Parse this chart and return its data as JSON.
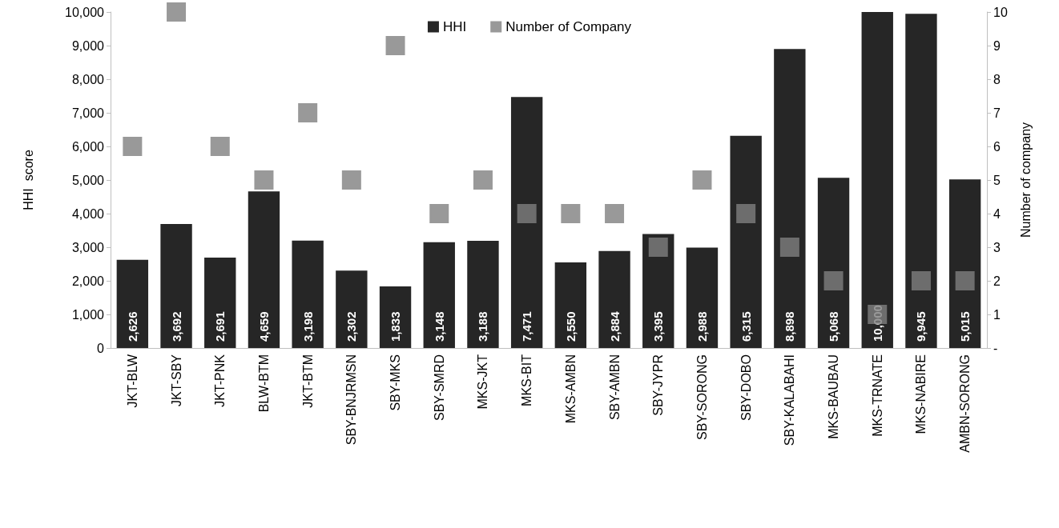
{
  "chart_data": {
    "type": "bar",
    "ylabel": "HHI  score",
    "y2label": "Number of company",
    "categories": [
      "JKT-BLW",
      "JKT-SBY",
      "JKT-PNK",
      "BLW-BTM",
      "JKT-BTM",
      "SBY-BNJRMSN",
      "SBY-MKS",
      "SBY-SMRD",
      "MKS-JKT",
      "MKS-BIT",
      "MKS-AMBN",
      "SBY-AMBN",
      "SBY-JYPR",
      "SBY-SORONG",
      "SBY-DOBO",
      "SBY-KALABAHI",
      "MKS-BAUBAU",
      "MKS-TRNATE",
      "MKS-NABIRE",
      "AMBN-SORONG"
    ],
    "series": [
      {
        "name": "HHI",
        "color": "#262626",
        "values": [
          2626,
          3692,
          2691,
          4659,
          3198,
          2302,
          1833,
          3148,
          3188,
          7471,
          2550,
          2884,
          3395,
          2988,
          6315,
          8898,
          5068,
          10000,
          9945,
          5015
        ],
        "value_labels": [
          "2,626",
          "3,692",
          "2,691",
          "4,659",
          "3,198",
          "2,302",
          "1,833",
          "3,148",
          "3,188",
          "7,471",
          "2,550",
          "2,884",
          "3,395",
          "2,988",
          "6,315",
          "8,898",
          "5,068",
          "10,000",
          "9,945",
          "5,015"
        ]
      },
      {
        "name": "Number of Company",
        "type": "scatter",
        "axis": "y2",
        "color": "#808080",
        "values": [
          6,
          10,
          6,
          5,
          7,
          5,
          9,
          4,
          5,
          4,
          4,
          4,
          3,
          5,
          4,
          3,
          2,
          1,
          2,
          2
        ]
      }
    ],
    "marker": "square",
    "ylim": [
      0,
      10000
    ],
    "yticks": [
      0,
      {
        "value": 1000,
        "label": "1,000"
      },
      {
        "value": 2000,
        "label": "2,000"
      },
      {
        "value": 3000,
        "label": "3,000"
      },
      {
        "value": 4000,
        "label": "4,000"
      },
      {
        "value": 5000,
        "label": "5,000"
      },
      {
        "value": 6000,
        "label": "6,000"
      },
      {
        "value": 7000,
        "label": "7,000"
      },
      {
        "value": 8000,
        "label": "8,000"
      },
      {
        "value": 9000,
        "label": "9,000"
      },
      {
        "value": 10000,
        "label": "10,000"
      }
    ],
    "y2lim": [
      0,
      10
    ],
    "y2ticks": [
      {
        "value": 0,
        "label": "-"
      },
      1,
      2,
      3,
      4,
      5,
      6,
      7,
      8,
      9,
      10
    ],
    "legend": "top",
    "grid": false
  }
}
